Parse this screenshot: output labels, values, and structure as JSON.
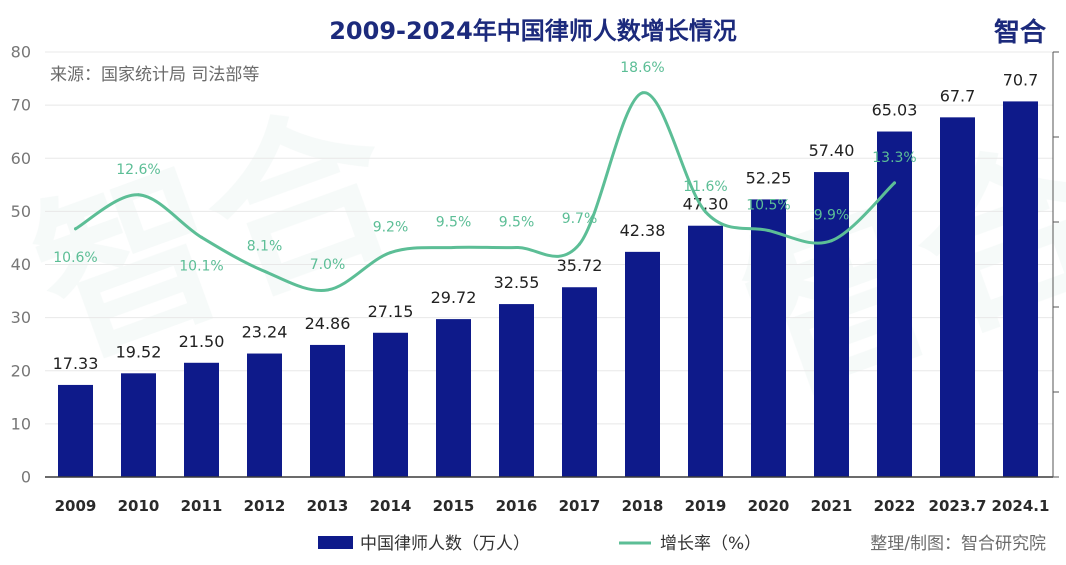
{
  "title": "2009-2024年中国律师人数增长情况",
  "logo": "智合",
  "watermark": "智合",
  "source": "来源：国家统计局 司法部等",
  "credit": "整理/制图：智合研究院",
  "colors": {
    "bar": "#0e1a8a",
    "line": "#5cbe96",
    "title": "#1c2a7c",
    "muted": "#6b6b6b",
    "watermark": "#3f8a76"
  },
  "chart_data": {
    "type": "bar",
    "categories": [
      "2009",
      "2010",
      "2011",
      "2012",
      "2013",
      "2014",
      "2015",
      "2016",
      "2017",
      "2018",
      "2019",
      "2020",
      "2021",
      "2022",
      "2023.7",
      "2024.1"
    ],
    "series": [
      {
        "name": "中国律师人数（万人）",
        "type": "bar",
        "axis": "left",
        "values": [
          17.33,
          19.52,
          21.5,
          23.24,
          24.86,
          27.15,
          29.72,
          32.55,
          35.72,
          42.38,
          47.3,
          52.25,
          57.4,
          65.03,
          67.7,
          70.7
        ],
        "labels": [
          "17.33",
          "19.52",
          "21.50",
          "23.24",
          "24.86",
          "27.15",
          "29.72",
          "32.55",
          "35.72",
          "42.38",
          "47.30",
          "52.25",
          "57.40",
          "65.03",
          "67.7",
          "70.7"
        ]
      },
      {
        "name": "增长率（%）",
        "type": "line",
        "axis": "right",
        "smooth": true,
        "values": [
          10.6,
          12.6,
          10.1,
          8.1,
          7.0,
          9.2,
          9.5,
          9.5,
          9.7,
          18.6,
          11.6,
          10.5,
          9.9,
          13.3,
          null,
          null
        ],
        "labels": [
          "10.6%",
          "12.6%",
          "10.1%",
          "8.1%",
          "7.0%",
          "9.2%",
          "9.5%",
          "9.5%",
          "9.7%",
          "18.6%",
          "11.6%",
          "10.5%",
          "9.9%",
          "13.3%",
          null,
          null
        ]
      }
    ],
    "ylim": [
      0,
      80
    ],
    "yticks": [
      0,
      10,
      20,
      30,
      40,
      50,
      60,
      70,
      80
    ],
    "y2lim": [
      -4,
      21
    ],
    "grid": true,
    "legend": "bottom"
  }
}
